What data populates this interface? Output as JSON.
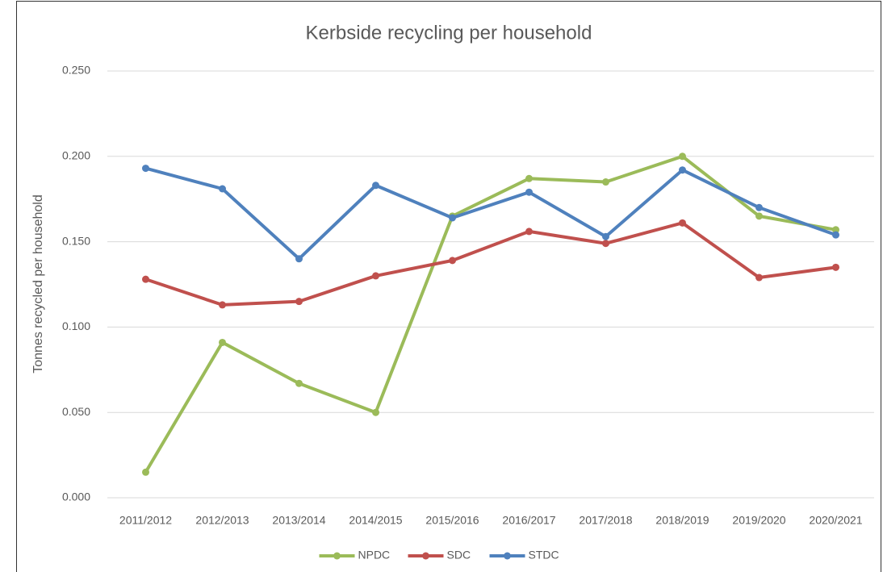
{
  "chart_data": {
    "type": "line",
    "title": "Kerbside recycling per household",
    "y_label": "Tonnes recycled per household",
    "categories": [
      "2011/2012",
      "2012/2013",
      "2013/2014",
      "2014/2015",
      "2015/2016",
      "2016/2017",
      "2017/2018",
      "2018/2019",
      "2019/2020",
      "2020/2021"
    ],
    "series": [
      {
        "name": "NPDC",
        "color": "#9bbb59",
        "values": [
          0.015,
          0.091,
          0.067,
          0.05,
          0.165,
          0.187,
          0.185,
          0.2,
          0.165,
          0.157
        ]
      },
      {
        "name": "SDC",
        "color": "#c0504d",
        "values": [
          0.128,
          0.113,
          0.115,
          0.13,
          0.139,
          0.156,
          0.149,
          0.161,
          0.129,
          0.135
        ]
      },
      {
        "name": "STDC",
        "color": "#4f81bd",
        "values": [
          0.193,
          0.181,
          0.14,
          0.183,
          0.164,
          0.179,
          0.153,
          0.192,
          0.17,
          0.154
        ]
      }
    ],
    "ylim": [
      0,
      0.25
    ],
    "yticks": [
      {
        "value": 0,
        "label": "0.000"
      },
      {
        "value": 0.05,
        "label": "0.050"
      },
      {
        "value": 0.1,
        "label": "0.100"
      },
      {
        "value": 0.15,
        "label": "0.150"
      },
      {
        "value": 0.2,
        "label": "0.200"
      },
      {
        "value": 0.25,
        "label": "0.250"
      }
    ],
    "grid": true,
    "legend": "bottom"
  }
}
